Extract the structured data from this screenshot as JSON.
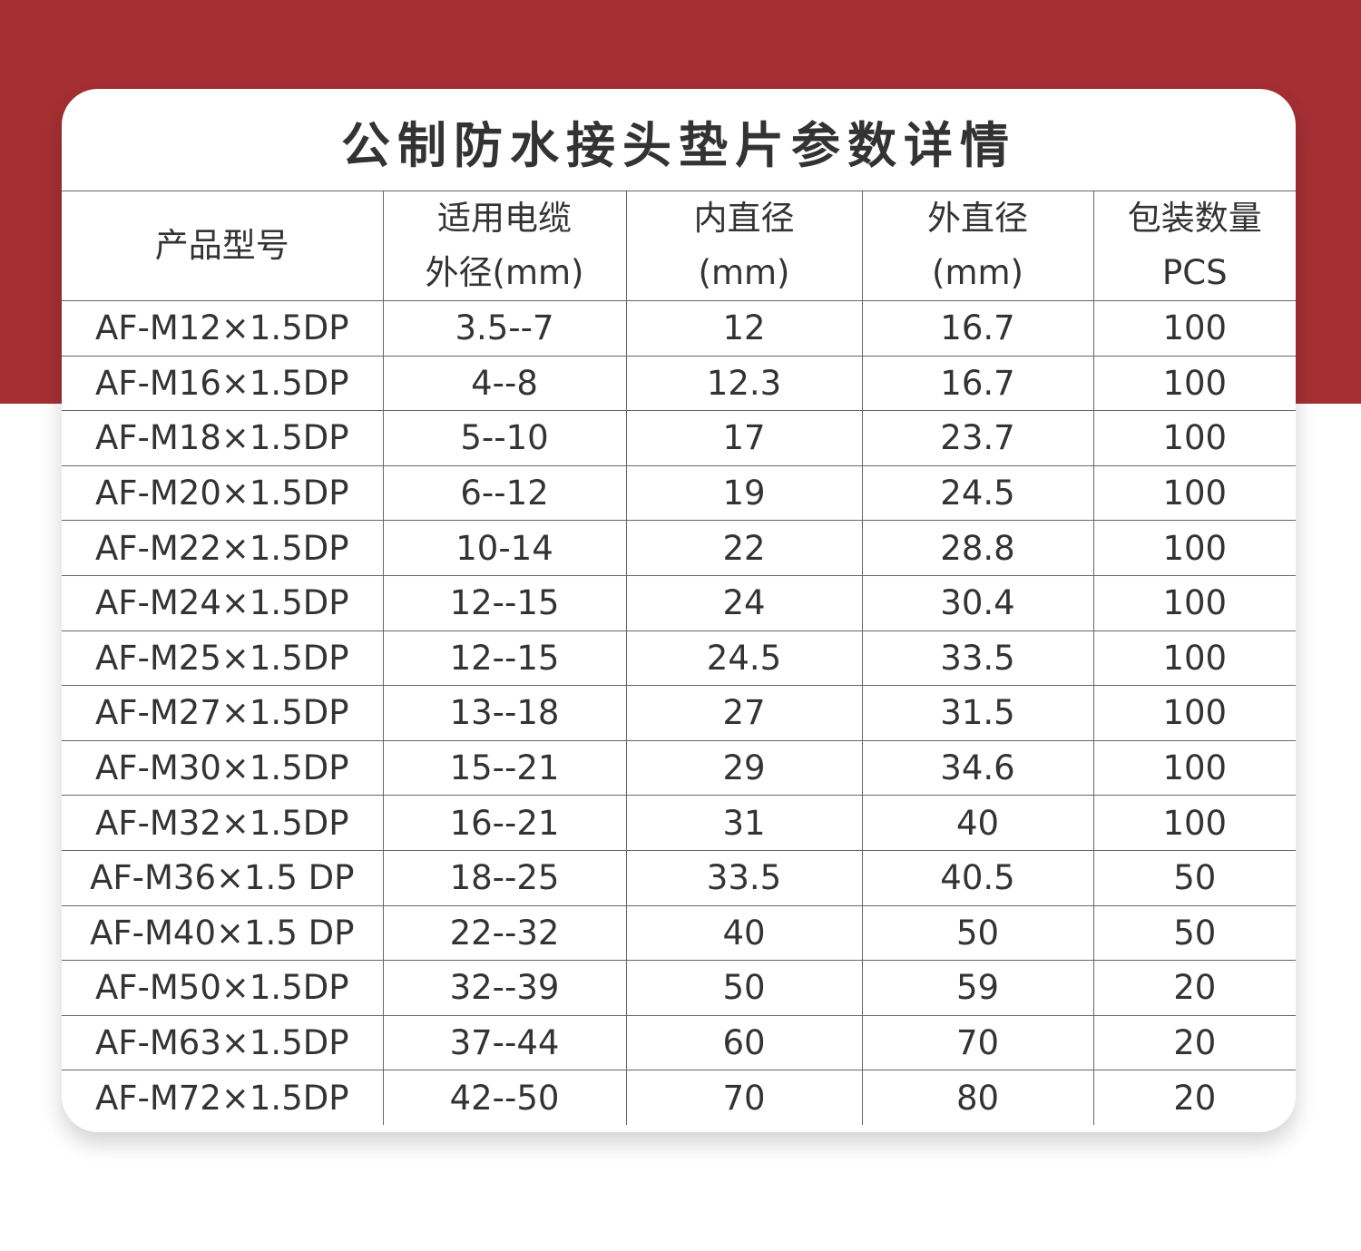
{
  "header": {
    "title": "公制防水接头垫片参数详情"
  },
  "table": {
    "columns": [
      [
        "产品型号"
      ],
      [
        "适用电缆",
        "外径(mm)"
      ],
      [
        "内直径",
        "(mm)"
      ],
      [
        "外直径",
        "(mm)"
      ],
      [
        "包装数量",
        "PCS"
      ]
    ],
    "rows": [
      [
        "AF-M12×1.5DP",
        "3.5--7",
        "12",
        "16.7",
        "100"
      ],
      [
        "AF-M16×1.5DP",
        "4--8",
        "12.3",
        "16.7",
        "100"
      ],
      [
        "AF-M18×1.5DP",
        "5--10",
        "17",
        "23.7",
        "100"
      ],
      [
        "AF-M20×1.5DP",
        "6--12",
        "19",
        "24.5",
        "100"
      ],
      [
        "AF-M22×1.5DP",
        "10-14",
        "22",
        "28.8",
        "100"
      ],
      [
        "AF-M24×1.5DP",
        "12--15",
        "24",
        "30.4",
        "100"
      ],
      [
        "AF-M25×1.5DP",
        "12--15",
        "24.5",
        "33.5",
        "100"
      ],
      [
        "AF-M27×1.5DP",
        "13--18",
        "27",
        "31.5",
        "100"
      ],
      [
        "AF-M30×1.5DP",
        "15--21",
        "29",
        "34.6",
        "100"
      ],
      [
        "AF-M32×1.5DP",
        "16--21",
        "31",
        "40",
        "100"
      ],
      [
        "AF-M36×1.5 DP",
        "18--25",
        "33.5",
        "40.5",
        "50"
      ],
      [
        "AF-M40×1.5 DP",
        "22--32",
        "40",
        "50",
        "50"
      ],
      [
        "AF-M50×1.5DP",
        "32--39",
        "50",
        "59",
        "20"
      ],
      [
        "AF-M63×1.5DP",
        "37--44",
        "60",
        "70",
        "20"
      ],
      [
        "AF-M72×1.5DP",
        "42--50",
        "70",
        "80",
        "20"
      ]
    ]
  }
}
